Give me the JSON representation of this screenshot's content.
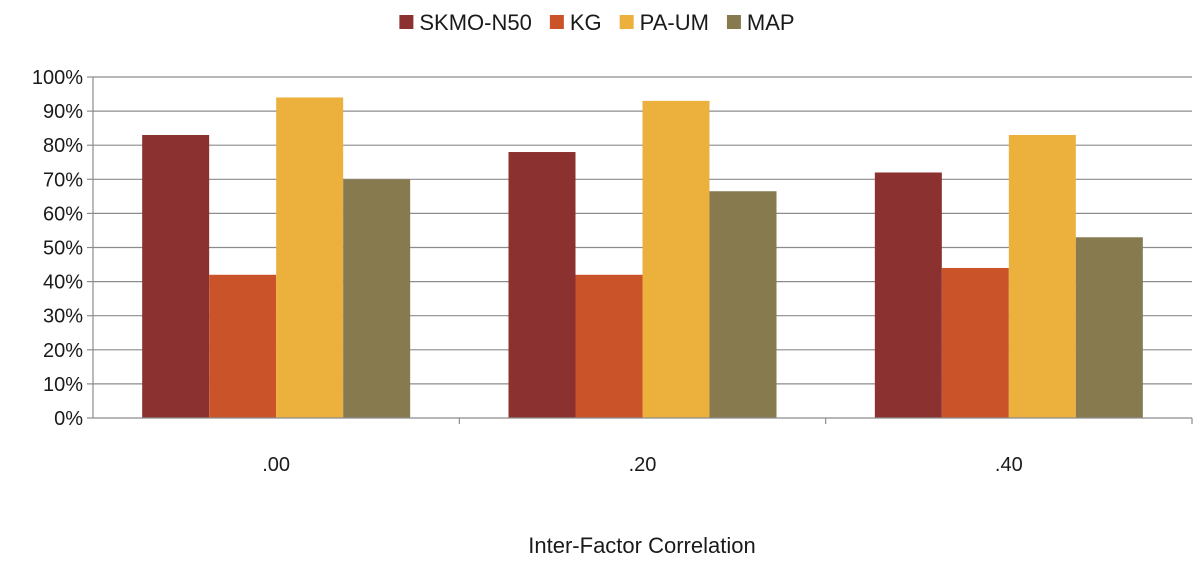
{
  "chart_data": {
    "type": "bar",
    "title": "",
    "xlabel": "Inter-Factor Correlation",
    "ylabel": "",
    "categories": [
      ".00",
      ".20",
      ".40"
    ],
    "ylim": [
      0,
      100
    ],
    "y_ticks": [
      "0%",
      "10%",
      "20%",
      "30%",
      "40%",
      "50%",
      "60%",
      "70%",
      "80%",
      "90%",
      "100%"
    ],
    "grid": true,
    "legend": "top-center",
    "series": [
      {
        "name": "SKMO-N50",
        "color": "#8b3230",
        "values": [
          83,
          78,
          72
        ]
      },
      {
        "name": "KG",
        "color": "#cb532a",
        "values": [
          42,
          42,
          44
        ]
      },
      {
        "name": "PA-UM",
        "color": "#ecb13d",
        "values": [
          94,
          93,
          83
        ]
      },
      {
        "name": "MAP",
        "color": "#867a4e",
        "values": [
          70,
          66.5,
          53
        ]
      }
    ]
  }
}
